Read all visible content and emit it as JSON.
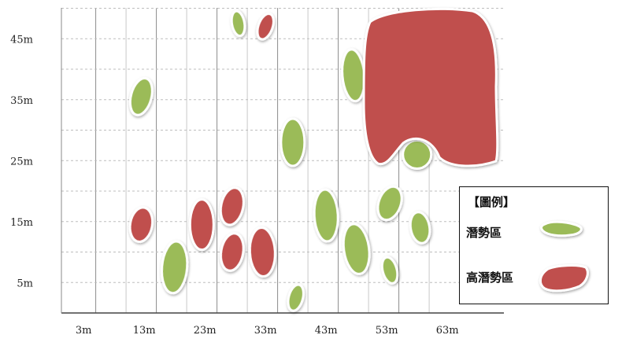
{
  "chart_data": {
    "type": "scatter",
    "title": "",
    "xlabel": "",
    "ylabel": "",
    "x_ticks": [
      "3m",
      "13m",
      "23m",
      "33m",
      "43m",
      "53m",
      "63m"
    ],
    "y_ticks": [
      "5m",
      "15m",
      "25m",
      "35m",
      "45m"
    ],
    "xlim": [
      -3,
      73
    ],
    "ylim": [
      0,
      50
    ],
    "grid": true,
    "legend_position": "bottom-right",
    "legend": {
      "title": "【圖例】",
      "entries": [
        {
          "label": "潛勢區",
          "color": "#9bbb59"
        },
        {
          "label": "高潛勢區",
          "color": "#c0504d"
        }
      ]
    },
    "series": [
      {
        "label_ref": 0,
        "color": "#9bbb59",
        "regions": [
          {
            "x": 12.5,
            "y": 35.5
          },
          {
            "x": 28.5,
            "y": 47.5
          },
          {
            "x": 37.5,
            "y": 28
          },
          {
            "x": 47.5,
            "y": 39
          },
          {
            "x": 58,
            "y": 26
          },
          {
            "x": 43,
            "y": 16
          },
          {
            "x": 53.5,
            "y": 18
          },
          {
            "x": 58.5,
            "y": 14
          },
          {
            "x": 48,
            "y": 10.5
          },
          {
            "x": 53.5,
            "y": 7
          },
          {
            "x": 38,
            "y": 2.5
          },
          {
            "x": 18,
            "y": 7.5
          }
        ]
      },
      {
        "label_ref": 1,
        "color": "#c0504d",
        "regions": [
          {
            "x": 33,
            "y": 47
          },
          {
            "x": 12.5,
            "y": 14.5
          },
          {
            "x": 22.5,
            "y": 14.5
          },
          {
            "x": 27.5,
            "y": 17.5
          },
          {
            "x": 27.5,
            "y": 10
          },
          {
            "x": 32.5,
            "y": 10
          },
          {
            "x": 58.5,
            "y": 39
          }
        ]
      }
    ]
  }
}
